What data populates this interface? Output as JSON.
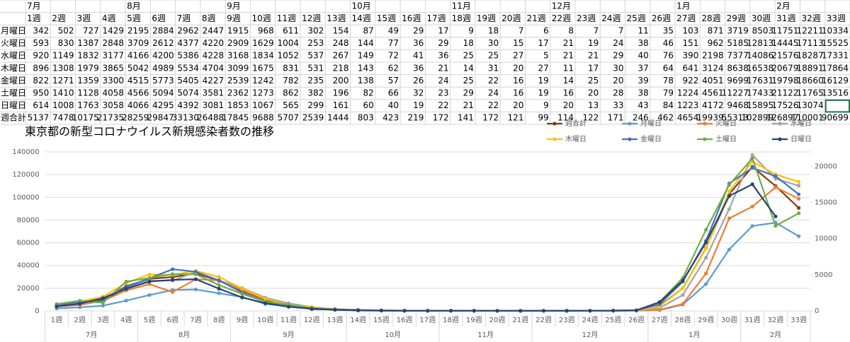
{
  "table": {
    "months": [
      {
        "name": "7月",
        "weeks": 4
      },
      {
        "name": "8月",
        "weeks": 4
      },
      {
        "name": "9月",
        "weeks": 5
      },
      {
        "name": "10月",
        "weeks": 4
      },
      {
        "name": "11月",
        "weeks": 4
      },
      {
        "name": "12月",
        "weeks": 5
      },
      {
        "name": "1月",
        "weeks": 4
      },
      {
        "name": "2月",
        "weeks": 3
      }
    ],
    "weeks": [
      "1週",
      "2週",
      "3週",
      "4週",
      "5週",
      "6週",
      "7週",
      "8週",
      "9週",
      "10週",
      "11週",
      "12週",
      "13週",
      "14週",
      "15週",
      "16週",
      "17週",
      "18週",
      "19週",
      "20週",
      "21週",
      "22週",
      "23週",
      "24週",
      "25週",
      "26週",
      "27週",
      "28週",
      "29週",
      "30週",
      "31週",
      "32週",
      "33週"
    ],
    "rows": [
      {
        "label": "月曜日",
        "values": [
          342,
          502,
          727,
          1429,
          2195,
          2884,
          2962,
          2447,
          1915,
          968,
          611,
          302,
          154,
          87,
          49,
          29,
          17,
          9,
          18,
          7,
          6,
          8,
          7,
          7,
          11,
          35,
          103,
          871,
          3719,
          8503,
          11751,
          12211,
          10334
        ]
      },
      {
        "label": "火曜日",
        "values": [
          593,
          830,
          1387,
          2848,
          3709,
          2612,
          4377,
          4220,
          2909,
          1629,
          1004,
          253,
          248,
          144,
          77,
          36,
          29,
          18,
          30,
          15,
          17,
          21,
          19,
          24,
          38,
          46,
          151,
          962,
          5185,
          12813,
          14445,
          17113,
          15525
        ]
      },
      {
        "label": "水曜日",
        "values": [
          920,
          1149,
          1832,
          3177,
          4166,
          4200,
          5386,
          4228,
          3168,
          1834,
          1052,
          537,
          267,
          149,
          72,
          41,
          36,
          25,
          25,
          27,
          5,
          21,
          21,
          29,
          40,
          76,
          390,
          2198,
          7377,
          14086,
          21576,
          18287,
          17331
        ]
      },
      {
        "label": "木曜日",
        "values": [
          896,
          1308,
          1979,
          3865,
          5042,
          4989,
          5534,
          4704,
          3099,
          1675,
          831,
          531,
          218,
          143,
          62,
          36,
          21,
          14,
          31,
          20,
          27,
          11,
          17,
          30,
          37,
          64,
          641,
          3124,
          8638,
          16538,
          20679,
          18891,
          17864
        ]
      },
      {
        "label": "金曜日",
        "values": [
          822,
          1271,
          1359,
          3300,
          4515,
          5773,
          5405,
          4227,
          2539,
          1242,
          782,
          235,
          200,
          138,
          57,
          26,
          24,
          25,
          22,
          16,
          19,
          14,
          25,
          20,
          39,
          78,
          922,
          4051,
          9699,
          17631,
          19798,
          18660,
          16129
        ]
      },
      {
        "label": "土曜日",
        "values": [
          950,
          1410,
          1128,
          4058,
          4566,
          5094,
          5074,
          3581,
          2362,
          1273,
          862,
          382,
          196,
          82,
          66,
          32,
          23,
          29,
          24,
          16,
          19,
          16,
          20,
          28,
          38,
          79,
          1224,
          4561,
          11227,
          17433,
          21122,
          11765,
          13516
        ]
      },
      {
        "label": "日曜日",
        "values": [
          614,
          1008,
          1763,
          3058,
          4066,
          4295,
          4392,
          3081,
          1853,
          1067,
          565,
          299,
          161,
          60,
          40,
          19,
          22,
          21,
          22,
          20,
          9,
          20,
          13,
          33,
          43,
          84,
          1223,
          4172,
          9468,
          15895,
          17526,
          13074,
          null
        ]
      },
      {
        "label": "週合計",
        "values": [
          5137,
          7478,
          10175,
          21735,
          28259,
          29847,
          33130,
          26488,
          17845,
          9688,
          5707,
          2539,
          1444,
          803,
          423,
          219,
          172,
          141,
          172,
          121,
          99,
          114,
          122,
          171,
          246,
          462,
          4654,
          19939,
          55313,
          102899,
          126897,
          110001,
          90699
        ]
      }
    ]
  },
  "chart_data": {
    "type": "line",
    "title": "東京都の新型コロナウイルス新規感染者数の推移",
    "categories": [
      "1週",
      "2週",
      "3週",
      "4週",
      "5週",
      "6週",
      "7週",
      "8週",
      "9週",
      "10週",
      "11週",
      "12週",
      "13週",
      "14週",
      "15週",
      "16週",
      "17週",
      "18週",
      "19週",
      "20週",
      "21週",
      "22週",
      "23週",
      "24週",
      "25週",
      "26週",
      "27週",
      "28週",
      "29週",
      "30週",
      "31週",
      "32週",
      "33週"
    ],
    "groups": [
      {
        "name": "7月",
        "weeks": 4
      },
      {
        "name": "8月",
        "weeks": 4
      },
      {
        "name": "9月",
        "weeks": 5
      },
      {
        "name": "10月",
        "weeks": 4
      },
      {
        "name": "11月",
        "weeks": 4
      },
      {
        "name": "12月",
        "weeks": 5
      },
      {
        "name": "1月",
        "weeks": 4
      },
      {
        "name": "2月",
        "weeks": 3
      }
    ],
    "ylim": [
      0,
      140000
    ],
    "yticks": [
      0,
      20000,
      40000,
      60000,
      80000,
      100000,
      120000,
      140000
    ],
    "y2lim": [
      0,
      22000
    ],
    "y2ticks": [
      0,
      5000,
      10000,
      15000,
      20000
    ],
    "grid": true,
    "legend": "top-right",
    "series": [
      {
        "name": "週合計",
        "color": "#843c0c",
        "values": [
          5137,
          7478,
          10175,
          21735,
          28259,
          29847,
          33130,
          26488,
          17845,
          9688,
          5707,
          2539,
          1444,
          803,
          423,
          219,
          172,
          141,
          172,
          121,
          99,
          114,
          122,
          171,
          246,
          462,
          4654,
          19939,
          55313,
          102899,
          126897,
          110001,
          90699
        ]
      },
      {
        "name": "月曜日",
        "color": "#5b9bd5",
        "axis": "y2",
        "values": [
          342,
          502,
          727,
          1429,
          2195,
          2884,
          2962,
          2447,
          1915,
          968,
          611,
          302,
          154,
          87,
          49,
          29,
          17,
          9,
          18,
          7,
          6,
          8,
          7,
          7,
          11,
          35,
          103,
          871,
          3719,
          8503,
          11751,
          12211,
          10334
        ]
      },
      {
        "name": "火曜日",
        "color": "#ed7d31",
        "axis": "y2",
        "values": [
          593,
          830,
          1387,
          2848,
          3709,
          2612,
          4377,
          4220,
          2909,
          1629,
          1004,
          253,
          248,
          144,
          77,
          36,
          29,
          18,
          30,
          15,
          17,
          21,
          19,
          24,
          38,
          46,
          151,
          962,
          5185,
          12813,
          14445,
          17113,
          15525
        ]
      },
      {
        "name": "水曜日",
        "color": "#a5a5a5",
        "axis": "y2",
        "values": [
          920,
          1149,
          1832,
          3177,
          4166,
          4200,
          5386,
          4228,
          3168,
          1834,
          1052,
          537,
          267,
          149,
          72,
          41,
          36,
          25,
          25,
          27,
          5,
          21,
          21,
          29,
          40,
          76,
          390,
          2198,
          7377,
          14086,
          21576,
          18287,
          17331
        ]
      },
      {
        "name": "木曜日",
        "color": "#ffc000",
        "axis": "y2",
        "values": [
          896,
          1308,
          1979,
          3865,
          5042,
          4989,
          5534,
          4704,
          3099,
          1675,
          831,
          531,
          218,
          143,
          62,
          36,
          21,
          14,
          31,
          20,
          27,
          11,
          17,
          30,
          37,
          64,
          641,
          3124,
          8638,
          16538,
          20679,
          18891,
          17864
        ]
      },
      {
        "name": "金曜日",
        "color": "#4472c4",
        "axis": "y2",
        "values": [
          822,
          1271,
          1359,
          3300,
          4515,
          5773,
          5405,
          4227,
          2539,
          1242,
          782,
          235,
          200,
          138,
          57,
          26,
          24,
          25,
          22,
          16,
          19,
          14,
          25,
          20,
          39,
          78,
          922,
          4051,
          9699,
          17631,
          19798,
          18660,
          16129
        ]
      },
      {
        "name": "土曜日",
        "color": "#70ad47",
        "axis": "y2",
        "values": [
          950,
          1410,
          1128,
          4058,
          4566,
          5094,
          5074,
          3581,
          2362,
          1273,
          862,
          382,
          196,
          82,
          66,
          32,
          23,
          29,
          24,
          16,
          19,
          16,
          20,
          28,
          38,
          79,
          1224,
          4561,
          11227,
          17433,
          21122,
          11765,
          13516
        ]
      },
      {
        "name": "日曜日",
        "color": "#264478",
        "axis": "y2",
        "values": [
          614,
          1008,
          1763,
          3058,
          4066,
          4295,
          4392,
          3081,
          1853,
          1067,
          565,
          299,
          161,
          60,
          40,
          19,
          22,
          21,
          22,
          20,
          9,
          20,
          13,
          33,
          43,
          84,
          1223,
          4172,
          9468,
          15895,
          17526,
          13074,
          null
        ]
      }
    ]
  }
}
